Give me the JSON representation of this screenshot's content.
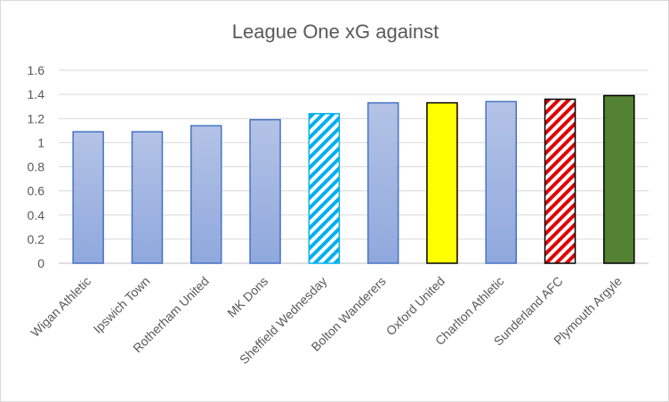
{
  "chart_data": {
    "type": "bar",
    "title": "League  One xG against",
    "xlabel": "",
    "ylabel": "",
    "ylim": [
      0,
      1.6
    ],
    "yticks": [
      "0",
      "0.2",
      "0.4",
      "0.6",
      "0.8",
      "1",
      "1.2",
      "1.4",
      "1.6"
    ],
    "grid": true,
    "legend": "none",
    "categories": [
      "Wigan Athletic",
      "Ipswich Town",
      "Rotherham United",
      "MK Dons",
      "Sheffield Wednesday",
      "Bolton Wanderers",
      "Oxford United",
      "Charlton Athletic",
      "Sunderland AFC",
      "Plymouth Argyle"
    ],
    "values": [
      1.09,
      1.09,
      1.14,
      1.19,
      1.24,
      1.33,
      1.33,
      1.34,
      1.36,
      1.39
    ],
    "bar_styles": [
      {
        "fill": "gradient-blue",
        "stroke": "#4472c4"
      },
      {
        "fill": "gradient-blue",
        "stroke": "#4472c4"
      },
      {
        "fill": "gradient-blue",
        "stroke": "#4472c4"
      },
      {
        "fill": "gradient-blue",
        "stroke": "#4472c4"
      },
      {
        "fill": "stripes-lightblue",
        "stroke": "#00b0f0"
      },
      {
        "fill": "gradient-blue",
        "stroke": "#4472c4"
      },
      {
        "fill": "#ffff00",
        "stroke": "#000000"
      },
      {
        "fill": "gradient-blue",
        "stroke": "#4472c4"
      },
      {
        "fill": "stripes-red",
        "stroke": "#000000"
      },
      {
        "fill": "#548235",
        "stroke": "#000000"
      }
    ]
  }
}
